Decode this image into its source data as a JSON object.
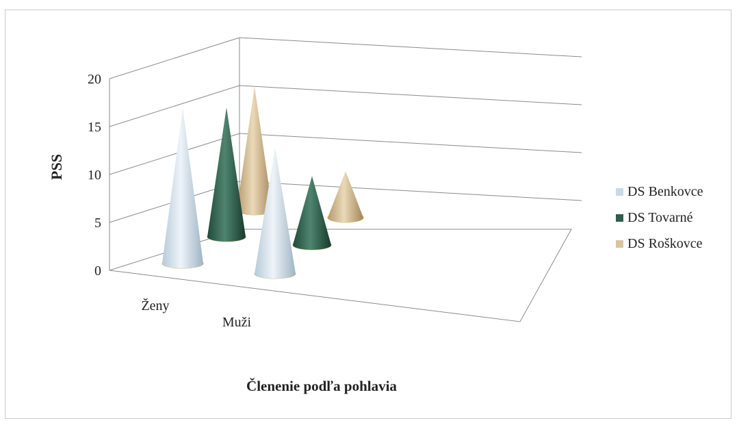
{
  "chart_data": {
    "type": "bar",
    "style": "3d-cone",
    "categories": [
      "Ženy",
      "Muži"
    ],
    "series": [
      {
        "name": "DS Benkovce",
        "values": [
          16,
          13
        ],
        "color": "#c9d9e6"
      },
      {
        "name": "DS Tovarné",
        "values": [
          15,
          8
        ],
        "color": "#2f5e4c"
      },
      {
        "name": "DS Roškovce",
        "values": [
          16,
          6
        ],
        "color": "#d8c4a0"
      }
    ],
    "ylabel": "PSS",
    "xlabel": "Členenie podľa pohlavia",
    "yticks": [
      "0",
      "5",
      "10",
      "15",
      "20"
    ],
    "ylim": [
      0,
      20
    ],
    "grid": true,
    "legend_position": "right"
  }
}
